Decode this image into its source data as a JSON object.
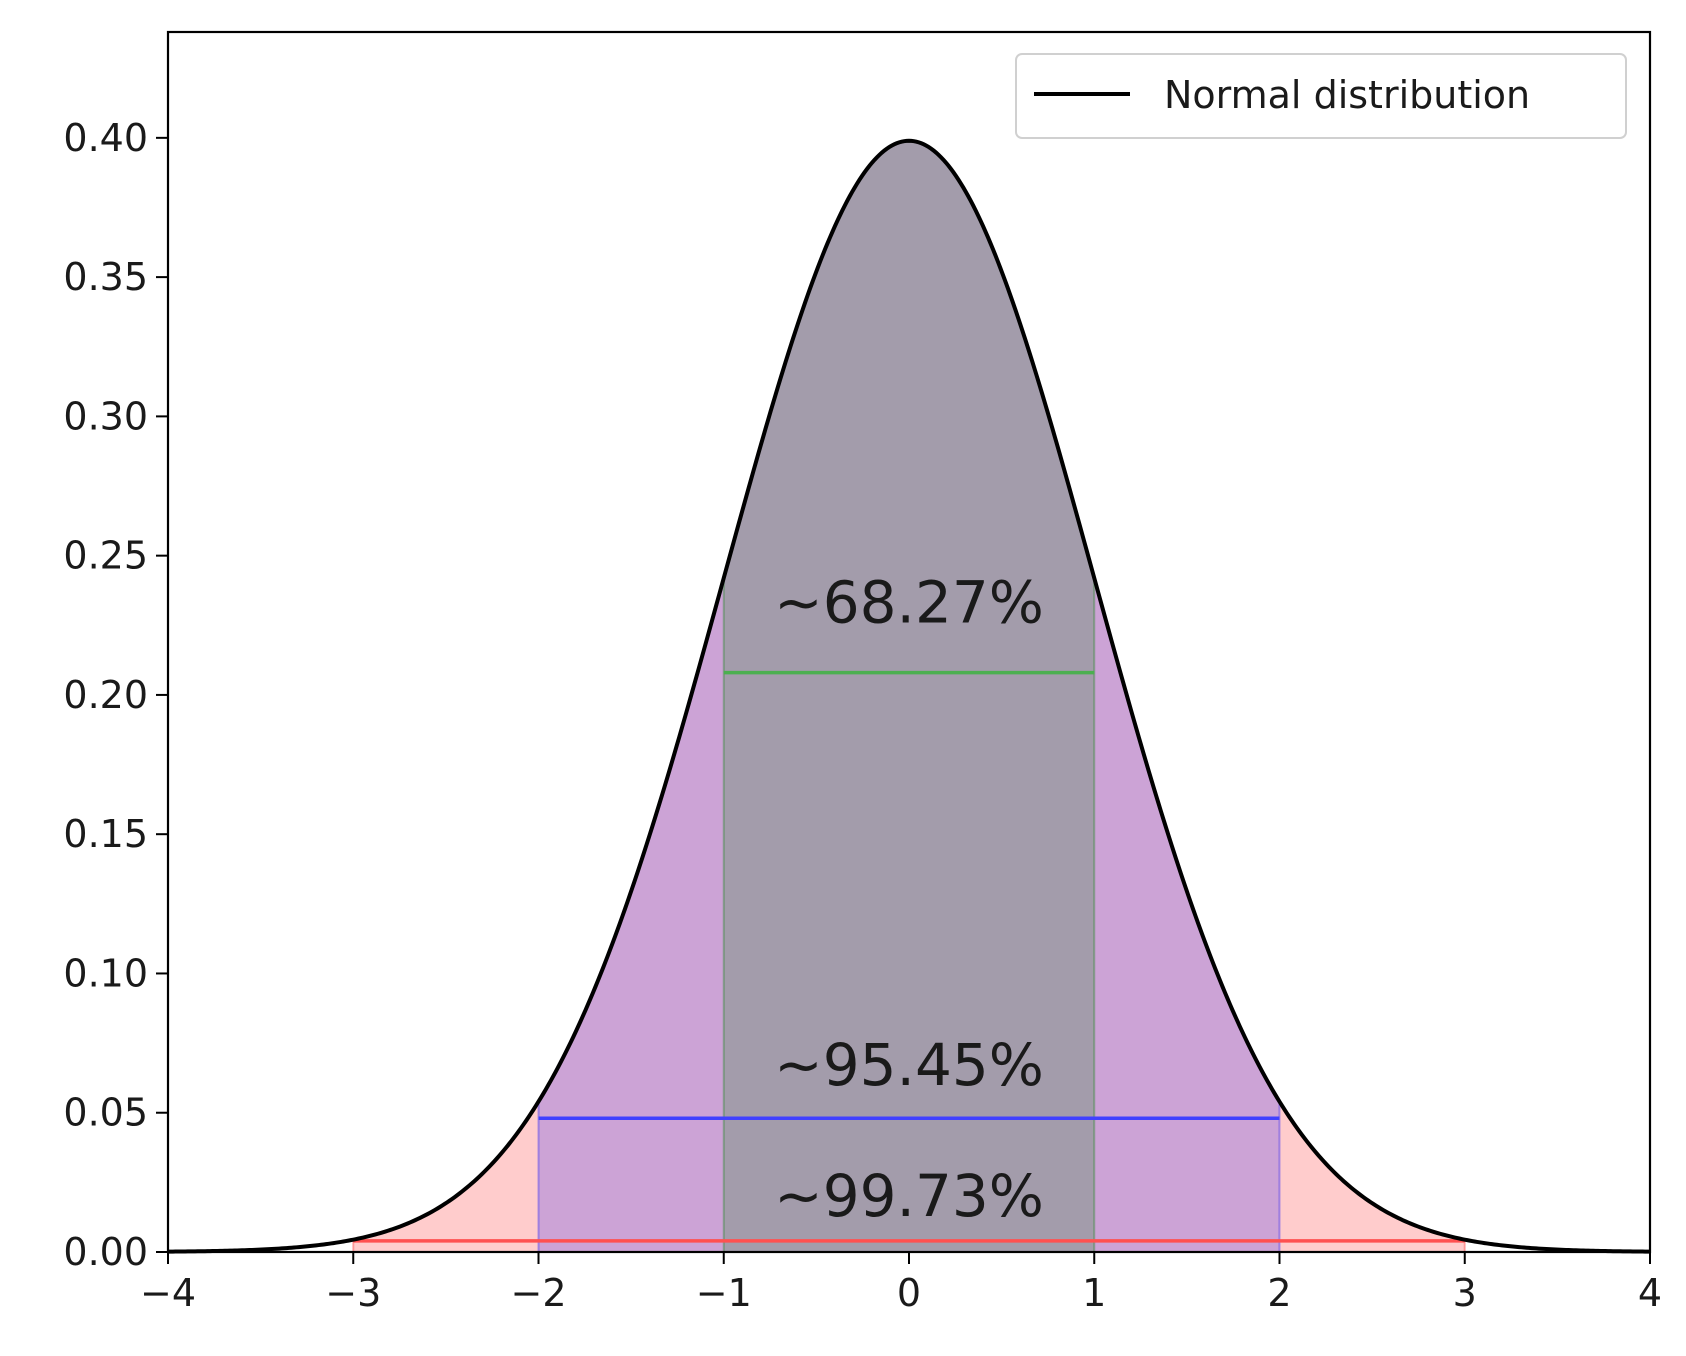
{
  "chart_data": {
    "type": "area",
    "title": "",
    "xlabel": "",
    "ylabel": "",
    "xlim": [
      -4,
      4
    ],
    "ylim": [
      0,
      0.438
    ],
    "x_ticks": [
      -4,
      -3,
      -2,
      -1,
      0,
      1,
      2,
      3,
      4
    ],
    "x_tick_labels": [
      "−4",
      "−3",
      "−2",
      "−1",
      "0",
      "1",
      "2",
      "3",
      "4"
    ],
    "y_ticks": [
      0.0,
      0.05,
      0.1,
      0.15,
      0.2,
      0.25,
      0.3,
      0.35,
      0.4
    ],
    "y_tick_labels": [
      "0.00",
      "0.05",
      "0.10",
      "0.15",
      "0.20",
      "0.25",
      "0.30",
      "0.35",
      "0.40"
    ],
    "grid": false,
    "series": [
      {
        "name": "Normal distribution",
        "mean": 0,
        "std": 1,
        "color": "#000000"
      }
    ],
    "fills": [
      {
        "name": "within-3-sigma",
        "from": -3,
        "to": 3,
        "color": "#ff0000",
        "opacity": 0.2
      },
      {
        "name": "within-2-sigma",
        "from": -2,
        "to": 2,
        "color": "#0000ff",
        "opacity": 0.2
      },
      {
        "name": "within-1-sigma",
        "from": -1,
        "to": 1,
        "color": "#008000",
        "opacity": 0.2
      }
    ],
    "annotations": [
      {
        "label": "~68.27%",
        "x_from": -1,
        "x_to": 1,
        "y": 0.208,
        "label_x": 0,
        "label_y": 0.226,
        "color": "#4caf50"
      },
      {
        "label": "~95.45%",
        "x_from": -2,
        "x_to": 2,
        "y": 0.048,
        "label_x": 0,
        "label_y": 0.06,
        "color": "#4040ff"
      },
      {
        "label": "~99.73%",
        "x_from": -3,
        "x_to": 3,
        "y": 0.004,
        "label_x": 0,
        "label_y": 0.013,
        "color": "#ff5050"
      }
    ],
    "legend": {
      "position": "top-right",
      "entries": [
        "Normal distribution"
      ]
    }
  }
}
